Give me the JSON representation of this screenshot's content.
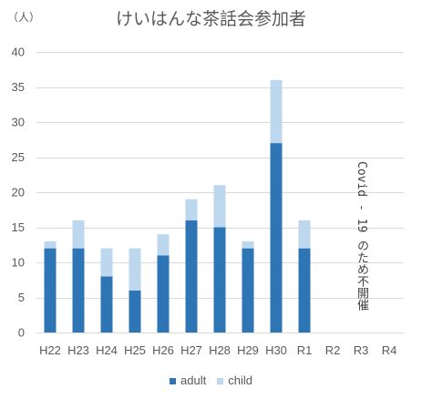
{
  "chart_data": {
    "type": "bar",
    "stacked": true,
    "title": "けいはんな茶話会参加者",
    "ylabel": "（人）",
    "xlabel": "",
    "categories": [
      "H22",
      "H23",
      "H24",
      "H25",
      "H26",
      "H27",
      "H28",
      "H29",
      "H30",
      "R1",
      "R2",
      "R3",
      "R4"
    ],
    "series": [
      {
        "name": "adult",
        "color": "#2E75B6",
        "values": [
          12,
          12,
          8,
          6,
          11,
          16,
          15,
          12,
          27,
          12,
          null,
          null,
          null
        ]
      },
      {
        "name": "child",
        "color": "#BDD7EE",
        "values": [
          1,
          4,
          4,
          6,
          3,
          3,
          6,
          1,
          9,
          4,
          null,
          null,
          null
        ]
      }
    ],
    "ylim": [
      0,
      40
    ],
    "yticks": [
      0,
      5,
      10,
      15,
      20,
      25,
      30,
      35,
      40
    ],
    "grid": true,
    "legend": "bottom",
    "annotations": [
      {
        "text": "Covid - 19 のため不開催"
      }
    ]
  }
}
